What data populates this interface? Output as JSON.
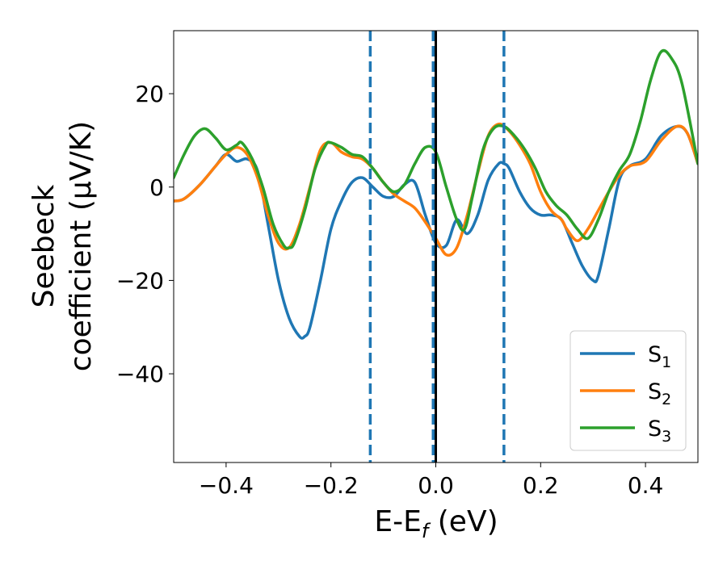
{
  "chart_data": {
    "type": "line",
    "xlabel": "E-E",
    "xlabel_sub": "f",
    "xlabel_unit": " (eV)",
    "ylabel_line1": "Seebeck",
    "ylabel_line2": "coefficient  (μV/K)",
    "xlim": [
      -0.5,
      0.5
    ],
    "ylim": [
      -59,
      33.5
    ],
    "xticks": [
      -0.4,
      -0.2,
      0.0,
      0.2,
      0.4
    ],
    "xtick_labels": [
      "−0.4",
      "−0.2",
      "0.0",
      "0.2",
      "0.4"
    ],
    "yticks": [
      -40,
      -20,
      0,
      20
    ],
    "ytick_labels": [
      "−40",
      "−20",
      "0",
      "20"
    ],
    "grid": false,
    "legend_position": "bottom-right",
    "vlines": [
      {
        "x": -0.125,
        "style": "dashed",
        "color": "#1f77b4"
      },
      {
        "x": -0.005,
        "style": "dashed",
        "color": "#1f77b4"
      },
      {
        "x": 0.13,
        "style": "dashed",
        "color": "#1f77b4"
      },
      {
        "x": 0.0,
        "style": "solid",
        "color": "#000000"
      }
    ],
    "series": [
      {
        "name": "S",
        "name_sub": "1",
        "color": "#1f77b4",
        "x": [
          -0.5,
          -0.48,
          -0.45,
          -0.42,
          -0.4,
          -0.38,
          -0.36,
          -0.34,
          -0.32,
          -0.3,
          -0.28,
          -0.26,
          -0.25,
          -0.24,
          -0.22,
          -0.2,
          -0.18,
          -0.16,
          -0.14,
          -0.12,
          -0.1,
          -0.08,
          -0.06,
          -0.04,
          -0.02,
          0.0,
          0.02,
          0.04,
          0.06,
          0.08,
          0.1,
          0.12,
          0.13,
          0.14,
          0.16,
          0.18,
          0.2,
          0.22,
          0.24,
          0.26,
          0.28,
          0.3,
          0.31,
          0.33,
          0.35,
          0.37,
          0.4,
          0.43,
          0.46,
          0.48,
          0.5
        ],
        "y": [
          -3,
          -2.5,
          0.5,
          4.5,
          7,
          5.5,
          6,
          3.5,
          -8,
          -20,
          -28,
          -32,
          -32,
          -30,
          -20,
          -9,
          -3,
          1,
          2,
          0,
          -2,
          -2,
          0.5,
          1,
          -6,
          -12,
          -12.5,
          -7,
          -10,
          -6,
          1.5,
          5,
          5,
          4,
          -1,
          -4.5,
          -6,
          -6,
          -7,
          -12,
          -17,
          -20,
          -19,
          -9,
          1.5,
          4.5,
          6,
          11,
          13,
          11.5,
          5
        ]
      },
      {
        "name": "S",
        "name_sub": "2",
        "color": "#ff7f0e",
        "x": [
          -0.5,
          -0.48,
          -0.45,
          -0.42,
          -0.4,
          -0.38,
          -0.36,
          -0.34,
          -0.32,
          -0.3,
          -0.28,
          -0.26,
          -0.24,
          -0.22,
          -0.2,
          -0.18,
          -0.16,
          -0.14,
          -0.12,
          -0.1,
          -0.08,
          -0.06,
          -0.04,
          -0.02,
          0.0,
          0.02,
          0.04,
          0.06,
          0.08,
          0.1,
          0.12,
          0.14,
          0.16,
          0.18,
          0.2,
          0.22,
          0.24,
          0.25,
          0.27,
          0.29,
          0.31,
          0.33,
          0.35,
          0.37,
          0.4,
          0.43,
          0.46,
          0.48,
          0.5
        ],
        "y": [
          -3,
          -2.5,
          0.5,
          4.5,
          7,
          8.5,
          7,
          2,
          -6,
          -12,
          -13,
          -8,
          0,
          8,
          9.5,
          7.5,
          6.5,
          6,
          4,
          1,
          -1.5,
          -3,
          -4.5,
          -7.5,
          -11,
          -14.5,
          -13,
          -6,
          3,
          11,
          13.5,
          12,
          9,
          5,
          -1,
          -5,
          -7,
          -9,
          -11.5,
          -9,
          -5,
          -1,
          2.5,
          4.5,
          5.5,
          10,
          13,
          11.5,
          5
        ]
      },
      {
        "name": "S",
        "name_sub": "3",
        "color": "#2ca02c",
        "x": [
          -0.5,
          -0.48,
          -0.46,
          -0.44,
          -0.42,
          -0.4,
          -0.38,
          -0.37,
          -0.35,
          -0.33,
          -0.31,
          -0.29,
          -0.28,
          -0.27,
          -0.25,
          -0.23,
          -0.21,
          -0.2,
          -0.18,
          -0.16,
          -0.14,
          -0.12,
          -0.1,
          -0.08,
          -0.06,
          -0.04,
          -0.02,
          0.0,
          0.02,
          0.04,
          0.055,
          0.07,
          0.09,
          0.11,
          0.13,
          0.15,
          0.17,
          0.19,
          0.21,
          0.23,
          0.25,
          0.27,
          0.29,
          0.31,
          0.33,
          0.35,
          0.37,
          0.39,
          0.41,
          0.43,
          0.45,
          0.47,
          0.5
        ],
        "y": [
          2,
          7,
          11,
          12.5,
          10.5,
          8,
          9,
          9.5,
          6,
          0,
          -8,
          -12.5,
          -13,
          -12,
          -5,
          4,
          9,
          9.5,
          8.5,
          7,
          6.5,
          4,
          1,
          -1,
          0.5,
          5,
          8.5,
          7.5,
          0,
          -7,
          -9,
          -2,
          8,
          12.5,
          13,
          11,
          8,
          4,
          -1,
          -4,
          -6,
          -9,
          -11,
          -7,
          -1,
          3.5,
          7,
          14,
          23,
          29,
          27.5,
          22,
          5
        ]
      }
    ]
  }
}
